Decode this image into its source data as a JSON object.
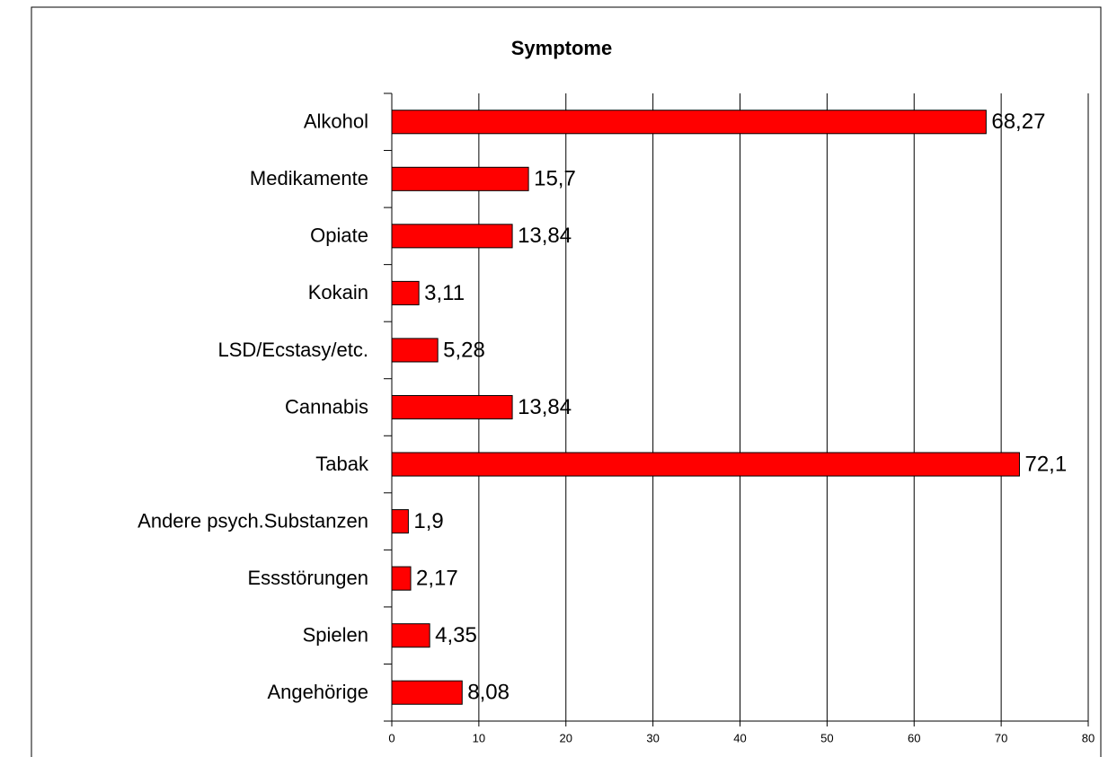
{
  "chart_data": {
    "type": "bar",
    "orientation": "horizontal",
    "title": "Symptome",
    "categories": [
      "Alkohol",
      "Medikamente",
      "Opiate",
      "Kokain",
      "LSD/Ecstasy/etc.",
      "Cannabis",
      "Tabak",
      "Andere psych.Substanzen",
      "Essstörungen",
      "Spielen",
      "Angehörige"
    ],
    "values": [
      68.27,
      15.7,
      13.84,
      3.11,
      5.28,
      13.84,
      72.1,
      1.9,
      2.17,
      4.35,
      8.08
    ],
    "value_labels": [
      "68,27",
      "15,7",
      "13,84",
      "3,11",
      "5,28",
      "13,84",
      "72,1",
      "1,9",
      "2,17",
      "4,35",
      "8,08"
    ],
    "color": "#ff0000",
    "xlim": [
      0,
      80
    ],
    "xticks": [
      0,
      10,
      20,
      30,
      40,
      50,
      60,
      70,
      80
    ],
    "grid": true
  }
}
